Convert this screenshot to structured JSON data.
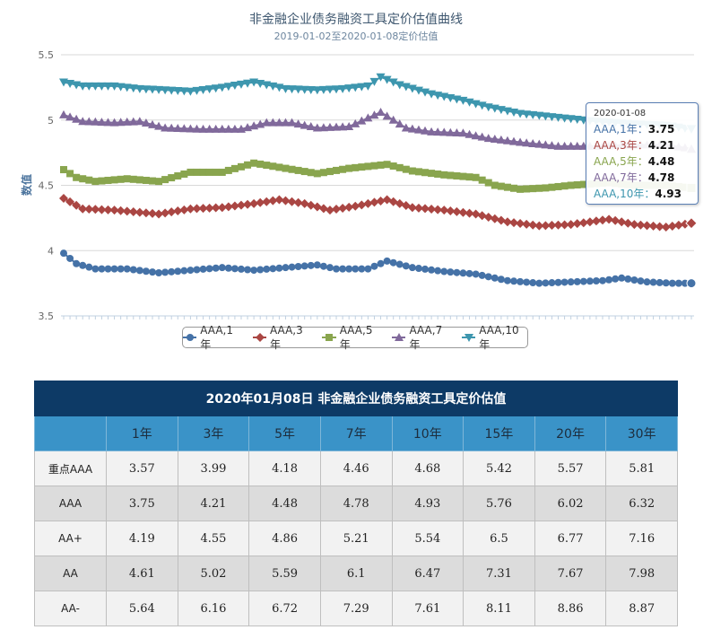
{
  "chart_data": {
    "type": "line",
    "title": "非金融企业债务融资工具定价估值曲线",
    "subtitle": "2019-01-02至2020-01-08定价估值",
    "ylabel": "数值",
    "xlabel": "",
    "ylim": [
      3.5,
      5.5
    ],
    "yticks": [
      "3.5",
      "4",
      "4.5",
      "5",
      "5.5"
    ],
    "ytick_values": [
      3.5,
      4.0,
      4.5,
      5.0,
      5.5
    ],
    "n_points": 100,
    "grid": "horizontal",
    "legend_position": "bottom",
    "series": [
      {
        "name": "AAA,1年",
        "color": "#4572a7",
        "marker": "circle",
        "anchors": [
          [
            0,
            3.98
          ],
          [
            2,
            3.9
          ],
          [
            5,
            3.86
          ],
          [
            10,
            3.86
          ],
          [
            15,
            3.83
          ],
          [
            20,
            3.85
          ],
          [
            25,
            3.87
          ],
          [
            30,
            3.85
          ],
          [
            35,
            3.87
          ],
          [
            40,
            3.89
          ],
          [
            43,
            3.86
          ],
          [
            48,
            3.86
          ],
          [
            51,
            3.92
          ],
          [
            55,
            3.87
          ],
          [
            60,
            3.84
          ],
          [
            65,
            3.82
          ],
          [
            70,
            3.77
          ],
          [
            75,
            3.75
          ],
          [
            80,
            3.76
          ],
          [
            85,
            3.77
          ],
          [
            88,
            3.79
          ],
          [
            92,
            3.76
          ],
          [
            96,
            3.75
          ],
          [
            99,
            3.75
          ]
        ]
      },
      {
        "name": "AAA,3年",
        "color": "#aa4643",
        "marker": "diamond",
        "anchors": [
          [
            0,
            4.4
          ],
          [
            3,
            4.32
          ],
          [
            8,
            4.31
          ],
          [
            15,
            4.28
          ],
          [
            20,
            4.32
          ],
          [
            25,
            4.33
          ],
          [
            30,
            4.36
          ],
          [
            34,
            4.39
          ],
          [
            38,
            4.36
          ],
          [
            42,
            4.31
          ],
          [
            46,
            4.34
          ],
          [
            51,
            4.39
          ],
          [
            55,
            4.33
          ],
          [
            60,
            4.31
          ],
          [
            65,
            4.28
          ],
          [
            70,
            4.22
          ],
          [
            75,
            4.19
          ],
          [
            80,
            4.2
          ],
          [
            86,
            4.24
          ],
          [
            90,
            4.2
          ],
          [
            95,
            4.18
          ],
          [
            99,
            4.21
          ]
        ]
      },
      {
        "name": "AAA,5年",
        "color": "#89a54e",
        "marker": "square",
        "anchors": [
          [
            0,
            4.62
          ],
          [
            2,
            4.56
          ],
          [
            5,
            4.53
          ],
          [
            10,
            4.55
          ],
          [
            15,
            4.53
          ],
          [
            20,
            4.6
          ],
          [
            25,
            4.6
          ],
          [
            30,
            4.67
          ],
          [
            35,
            4.63
          ],
          [
            40,
            4.59
          ],
          [
            45,
            4.63
          ],
          [
            51,
            4.66
          ],
          [
            55,
            4.61
          ],
          [
            60,
            4.58
          ],
          [
            65,
            4.56
          ],
          [
            68,
            4.5
          ],
          [
            72,
            4.47
          ],
          [
            76,
            4.48
          ],
          [
            80,
            4.5
          ],
          [
            86,
            4.52
          ],
          [
            90,
            4.5
          ],
          [
            95,
            4.5
          ],
          [
            99,
            4.48
          ]
        ]
      },
      {
        "name": "AAA,7年",
        "color": "#80699b",
        "marker": "triangle",
        "anchors": [
          [
            0,
            5.04
          ],
          [
            3,
            4.99
          ],
          [
            8,
            4.98
          ],
          [
            12,
            4.99
          ],
          [
            16,
            4.94
          ],
          [
            22,
            4.93
          ],
          [
            28,
            4.93
          ],
          [
            32,
            4.98
          ],
          [
            36,
            4.98
          ],
          [
            40,
            4.94
          ],
          [
            45,
            4.95
          ],
          [
            50,
            5.06
          ],
          [
            54,
            4.94
          ],
          [
            58,
            4.91
          ],
          [
            63,
            4.9
          ],
          [
            67,
            4.86
          ],
          [
            72,
            4.83
          ],
          [
            78,
            4.8
          ],
          [
            84,
            4.8
          ],
          [
            90,
            4.81
          ],
          [
            95,
            4.81
          ],
          [
            99,
            4.78
          ]
        ]
      },
      {
        "name": "AAA,10年",
        "color": "#3d96ae",
        "marker": "triangle-down",
        "anchors": [
          [
            0,
            5.29
          ],
          [
            3,
            5.26
          ],
          [
            8,
            5.26
          ],
          [
            12,
            5.24
          ],
          [
            16,
            5.23
          ],
          [
            20,
            5.22
          ],
          [
            25,
            5.25
          ],
          [
            30,
            5.29
          ],
          [
            35,
            5.24
          ],
          [
            40,
            5.23
          ],
          [
            44,
            5.24
          ],
          [
            48,
            5.26
          ],
          [
            50,
            5.33
          ],
          [
            53,
            5.27
          ],
          [
            58,
            5.2
          ],
          [
            63,
            5.15
          ],
          [
            67,
            5.1
          ],
          [
            72,
            5.05
          ],
          [
            78,
            5.02
          ],
          [
            84,
            4.99
          ],
          [
            90,
            4.97
          ],
          [
            95,
            4.96
          ],
          [
            99,
            4.93
          ]
        ]
      }
    ]
  },
  "tooltip": {
    "date": "2020-01-08",
    "rows": [
      {
        "label": "AAA,1年：",
        "value": "3.75",
        "color": "#4572a7"
      },
      {
        "label": "AAA,3年：",
        "value": "4.21",
        "color": "#aa4643"
      },
      {
        "label": "AAA,5年：",
        "value": "4.48",
        "color": "#89a54e"
      },
      {
        "label": "AAA,7年：",
        "value": "4.78",
        "color": "#80699b"
      },
      {
        "label": "AAA,10年：",
        "value": "4.93",
        "color": "#3d96ae"
      }
    ]
  },
  "table": {
    "title": "2020年01月08日  非金融企业债务融资工具定价估值",
    "headers": [
      "",
      "1年",
      "3年",
      "5年",
      "7年",
      "10年",
      "15年",
      "20年",
      "30年"
    ],
    "rows": [
      {
        "label": "重点AAA",
        "values": [
          "3.57",
          "3.99",
          "4.18",
          "4.46",
          "4.68",
          "5.42",
          "5.57",
          "5.81"
        ]
      },
      {
        "label": "AAA",
        "values": [
          "3.75",
          "4.21",
          "4.48",
          "4.78",
          "4.93",
          "5.76",
          "6.02",
          "6.32"
        ]
      },
      {
        "label": "AA+",
        "values": [
          "4.19",
          "4.55",
          "4.86",
          "5.21",
          "5.54",
          "6.5",
          "6.77",
          "7.16"
        ]
      },
      {
        "label": "AA",
        "values": [
          "4.61",
          "5.02",
          "5.59",
          "6.1",
          "6.47",
          "7.31",
          "7.67",
          "7.98"
        ]
      },
      {
        "label": "AA-",
        "values": [
          "5.64",
          "6.16",
          "6.72",
          "7.29",
          "7.61",
          "8.11",
          "8.86",
          "8.87"
        ]
      }
    ]
  }
}
